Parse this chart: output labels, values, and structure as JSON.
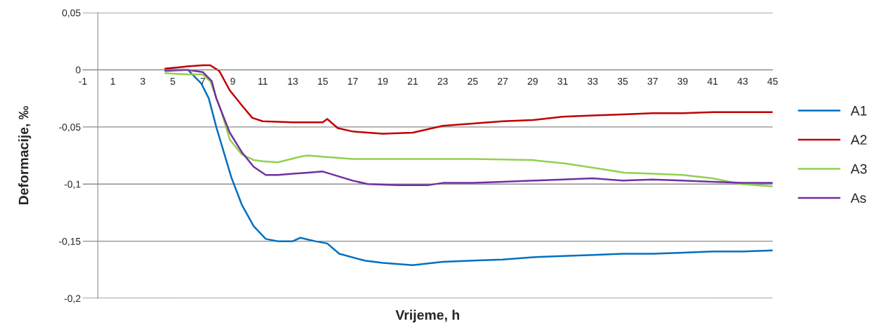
{
  "chart_data": {
    "type": "line",
    "xlabel": "Vrijeme, h",
    "ylabel": "Deformacije, ‰",
    "xlim": [
      -1,
      45
    ],
    "xticks": [
      -1,
      1,
      3,
      5,
      7,
      9,
      11,
      13,
      15,
      17,
      19,
      21,
      23,
      25,
      27,
      29,
      31,
      33,
      35,
      37,
      39,
      41,
      43,
      45
    ],
    "ylim": [
      -0.2,
      0.05
    ],
    "yticks": [
      {
        "value": -0.2,
        "label": "-0,2"
      },
      {
        "value": -0.15,
        "label": "-0,15"
      },
      {
        "value": -0.1,
        "label": "-0,1"
      },
      {
        "value": -0.05,
        "label": "-0,05"
      },
      0,
      {
        "value": 0.05,
        "label": "0,05"
      }
    ],
    "grid": "y",
    "legend": "right",
    "marker": "none",
    "line_style": "solid",
    "series": [
      {
        "name": "A1",
        "color": "#0070c0",
        "x": [
          4.5,
          6,
          6.9,
          7.4,
          7.9,
          8.9,
          9.6,
          10.4,
          11.2,
          12,
          13,
          13.5,
          14.5,
          15.3,
          16.1,
          17.8,
          19,
          21,
          23,
          25,
          27,
          29,
          31,
          33,
          35,
          37,
          39,
          41,
          43,
          45
        ],
        "values": [
          0,
          0,
          -0.012,
          -0.025,
          -0.05,
          -0.094,
          -0.118,
          -0.137,
          -0.148,
          -0.15,
          -0.15,
          -0.147,
          -0.15,
          -0.152,
          -0.161,
          -0.167,
          -0.169,
          -0.171,
          -0.168,
          -0.167,
          -0.166,
          -0.164,
          -0.163,
          -0.162,
          -0.161,
          -0.161,
          -0.16,
          -0.159,
          -0.159,
          -0.158
        ]
      },
      {
        "name": "A2",
        "color": "#c00000",
        "x": [
          4.5,
          6,
          7,
          7.5,
          8.1,
          8.8,
          9.6,
          10.3,
          11,
          13,
          15,
          15.3,
          16,
          17,
          19,
          21,
          23,
          25,
          27,
          29,
          31,
          33,
          35,
          37,
          39,
          41,
          43,
          45
        ],
        "values": [
          0.001,
          0.003,
          0.004,
          0.004,
          -0.001,
          -0.018,
          -0.031,
          -0.042,
          -0.045,
          -0.046,
          -0.046,
          -0.043,
          -0.051,
          -0.054,
          -0.056,
          -0.055,
          -0.049,
          -0.047,
          -0.045,
          -0.044,
          -0.041,
          -0.04,
          -0.039,
          -0.038,
          -0.038,
          -0.037,
          -0.037,
          -0.037
        ]
      },
      {
        "name": "A3",
        "color": "#92d050",
        "x": [
          4.5,
          6,
          7,
          7.5,
          8.2,
          8.8,
          9.6,
          10.4,
          11,
          12,
          13.5,
          14,
          15,
          17,
          21,
          25,
          29,
          31.2,
          33.2,
          35.1,
          37.1,
          39,
          41,
          42.9,
          45
        ],
        "values": [
          -0.003,
          -0.004,
          -0.004,
          -0.01,
          -0.035,
          -0.061,
          -0.074,
          -0.079,
          -0.08,
          -0.081,
          -0.076,
          -0.075,
          -0.076,
          -0.078,
          -0.078,
          -0.078,
          -0.079,
          -0.082,
          -0.086,
          -0.09,
          -0.091,
          -0.092,
          -0.095,
          -0.1,
          -0.102
        ]
      },
      {
        "name": "As",
        "color": "#7030a0",
        "x": [
          4.5,
          6,
          7,
          7.6,
          7.9,
          8.8,
          9.6,
          10.4,
          11.2,
          12,
          13,
          14,
          15,
          16,
          17,
          18,
          20,
          22,
          23,
          25,
          27,
          29,
          31,
          33,
          35,
          37,
          39,
          41,
          43,
          45
        ],
        "values": [
          -0.001,
          0,
          -0.002,
          -0.01,
          -0.025,
          -0.055,
          -0.072,
          -0.085,
          -0.092,
          -0.092,
          -0.091,
          -0.09,
          -0.089,
          -0.093,
          -0.097,
          -0.1,
          -0.101,
          -0.101,
          -0.099,
          -0.099,
          -0.098,
          -0.097,
          -0.096,
          -0.095,
          -0.097,
          -0.096,
          -0.097,
          -0.098,
          -0.099,
          -0.099
        ]
      }
    ]
  }
}
